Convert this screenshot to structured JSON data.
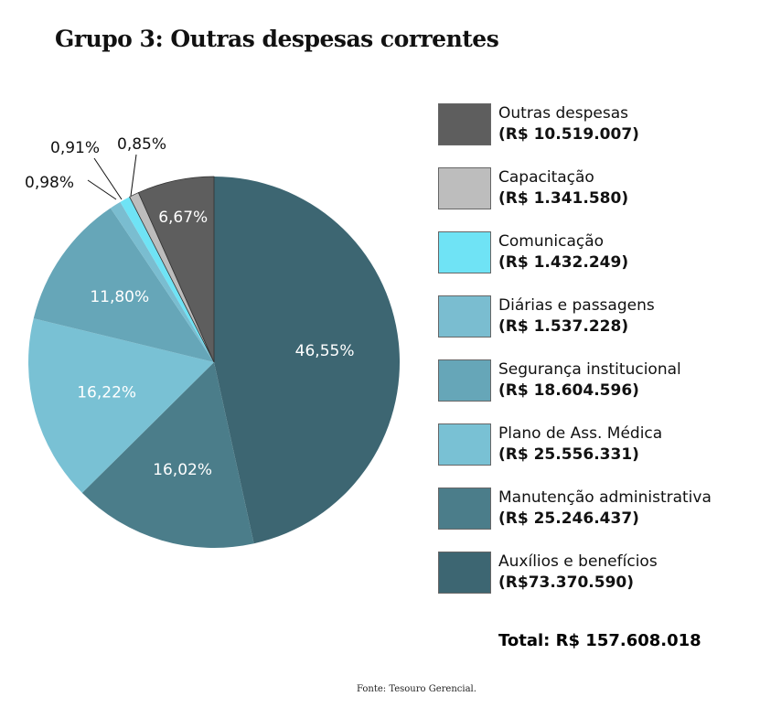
{
  "chart_data": {
    "type": "pie",
    "title": "Grupo 3: Outras despesas correntes",
    "start": "top",
    "direction": "clockwise",
    "slices": [
      {
        "name": "Auxílios e benefícios",
        "value_label": "(R$73.370.590)",
        "value": 73370590,
        "percent": 46.55,
        "percent_label": "46,55%",
        "color": "#3d6672"
      },
      {
        "name": "Manutenção administrativa",
        "value_label": "(R$ 25.246.437)",
        "value": 25246437,
        "percent": 16.02,
        "percent_label": "16,02%",
        "color": "#4b7d8a"
      },
      {
        "name": "Plano de Ass. Médica",
        "value_label": "(R$ 25.556.331)",
        "value": 25556331,
        "percent": 16.22,
        "percent_label": "16,22%",
        "color": "#79c1d4"
      },
      {
        "name": "Segurança institucional",
        "value_label": "(R$ 18.604.596)",
        "value": 18604596,
        "percent": 11.8,
        "percent_label": "11,80%",
        "color": "#66a6b8"
      },
      {
        "name": "Diárias e passagens",
        "value_label": "(R$ 1.537.228)",
        "value": 1537228,
        "percent": 0.98,
        "percent_label": "0,98%",
        "color": "#7abdd0"
      },
      {
        "name": "Comunicação",
        "value_label": "(R$ 1.432.249)",
        "value": 1432249,
        "percent": 0.91,
        "percent_label": "0,91%",
        "color": "#6fe3f5"
      },
      {
        "name": "Capacitação",
        "value_label": "(R$ 1.341.580)",
        "value": 1341580,
        "percent": 0.85,
        "percent_label": "0,85%",
        "color": "#bdbdbd"
      },
      {
        "name": "Outras despesas",
        "value_label": "(R$ 10.519.007)",
        "value": 10519007,
        "percent": 6.67,
        "percent_label": "6,67%",
        "color": "#5e5e5e"
      }
    ],
    "legend_order": [
      7,
      6,
      5,
      4,
      3,
      2,
      1,
      0
    ],
    "legend_placement": "right",
    "total_label": "Total: R$ 157.608.018",
    "source": "Fonte:  Tesouro Gerencial."
  }
}
